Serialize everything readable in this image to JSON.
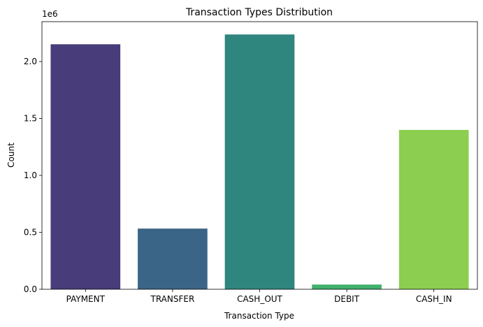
{
  "chart_data": {
    "type": "bar",
    "title": "Transaction Types Distribution",
    "xlabel": "Transaction Type",
    "ylabel": "Count",
    "y_offset_label": "1e6",
    "categories": [
      "PAYMENT",
      "TRANSFER",
      "CASH_OUT",
      "DEBIT",
      "CASH_IN"
    ],
    "values": [
      2151495,
      532909,
      2237500,
      41432,
      1399284
    ],
    "colors": [
      "#483d7a",
      "#3b6586",
      "#2e867e",
      "#40b16e",
      "#8cce4f"
    ],
    "ylim": [
      0,
      2350000
    ],
    "yticks": [
      0,
      500000,
      1000000,
      1500000,
      2000000
    ],
    "ytick_labels": [
      "0.0",
      "0.5",
      "1.0",
      "1.5",
      "2.0"
    ],
    "grid": false,
    "legend": "none"
  }
}
